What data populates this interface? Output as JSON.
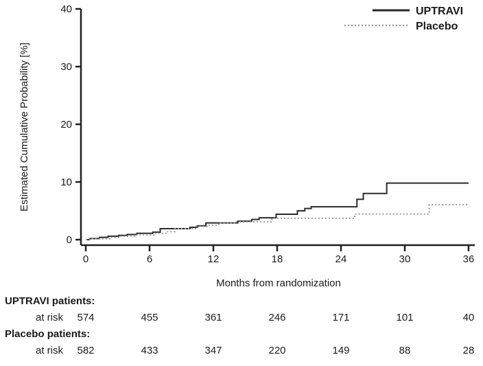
{
  "chart_data": {
    "type": "line",
    "subtype": "kaplan-meier-step",
    "title": "",
    "xlabel": "Months from randomization",
    "ylabel": "Estimated Cumulative Probability [%]",
    "xlim": [
      0,
      36
    ],
    "ylim": [
      0,
      40
    ],
    "xticks": [
      0,
      6,
      12,
      18,
      24,
      30,
      36
    ],
    "yticks": [
      0,
      10,
      20,
      30,
      40
    ],
    "grid": false,
    "legend_position": "top-right",
    "x_end": 36,
    "series": [
      {
        "name": "UPTRAVI",
        "style": "solid",
        "color": "#2b2b2b",
        "points": [
          [
            0,
            0
          ],
          [
            0.4,
            0.2
          ],
          [
            1.3,
            0.4
          ],
          [
            2.1,
            0.6
          ],
          [
            3.1,
            0.75
          ],
          [
            3.9,
            0.9
          ],
          [
            4.8,
            1.1
          ],
          [
            6.3,
            1.3
          ],
          [
            7.0,
            1.9
          ],
          [
            9.8,
            2.15
          ],
          [
            10.5,
            2.4
          ],
          [
            11.3,
            2.9
          ],
          [
            14.3,
            3.2
          ],
          [
            15.6,
            3.5
          ],
          [
            16.3,
            3.8
          ],
          [
            17.9,
            4.4
          ],
          [
            19.9,
            5.0
          ],
          [
            20.6,
            5.4
          ],
          [
            21.2,
            5.7
          ],
          [
            25.5,
            7.0
          ],
          [
            26.1,
            8.0
          ],
          [
            28.3,
            9.8
          ]
        ]
      },
      {
        "name": "Placebo",
        "style": "dotted",
        "color": "#9a9a9a",
        "points": [
          [
            0,
            0
          ],
          [
            0.6,
            0.15
          ],
          [
            2.3,
            0.4
          ],
          [
            3.3,
            0.6
          ],
          [
            4.7,
            0.8
          ],
          [
            6.4,
            1.1
          ],
          [
            7.7,
            1.4
          ],
          [
            8.4,
            1.9
          ],
          [
            10.4,
            2.3
          ],
          [
            11.6,
            2.5
          ],
          [
            12.5,
            2.9
          ],
          [
            14.0,
            3.1
          ],
          [
            17.5,
            3.7
          ],
          [
            25.3,
            4.45
          ],
          [
            32.3,
            6.05
          ]
        ]
      }
    ]
  },
  "legend": {
    "items": [
      {
        "label": "UPTRAVI",
        "style": "solid"
      },
      {
        "label": "Placebo",
        "style": "dotted"
      }
    ]
  },
  "risk_table": {
    "months": [
      0,
      6,
      12,
      18,
      24,
      30,
      36
    ],
    "groups": [
      {
        "header": "UPTRAVI patients:",
        "row_label": "at risk",
        "values": [
          "574",
          "455",
          "361",
          "246",
          "171",
          "101",
          "40"
        ]
      },
      {
        "header": "Placebo patients:",
        "row_label": "at risk",
        "values": [
          "582",
          "433",
          "347",
          "220",
          "149",
          "88",
          "28"
        ]
      }
    ]
  }
}
